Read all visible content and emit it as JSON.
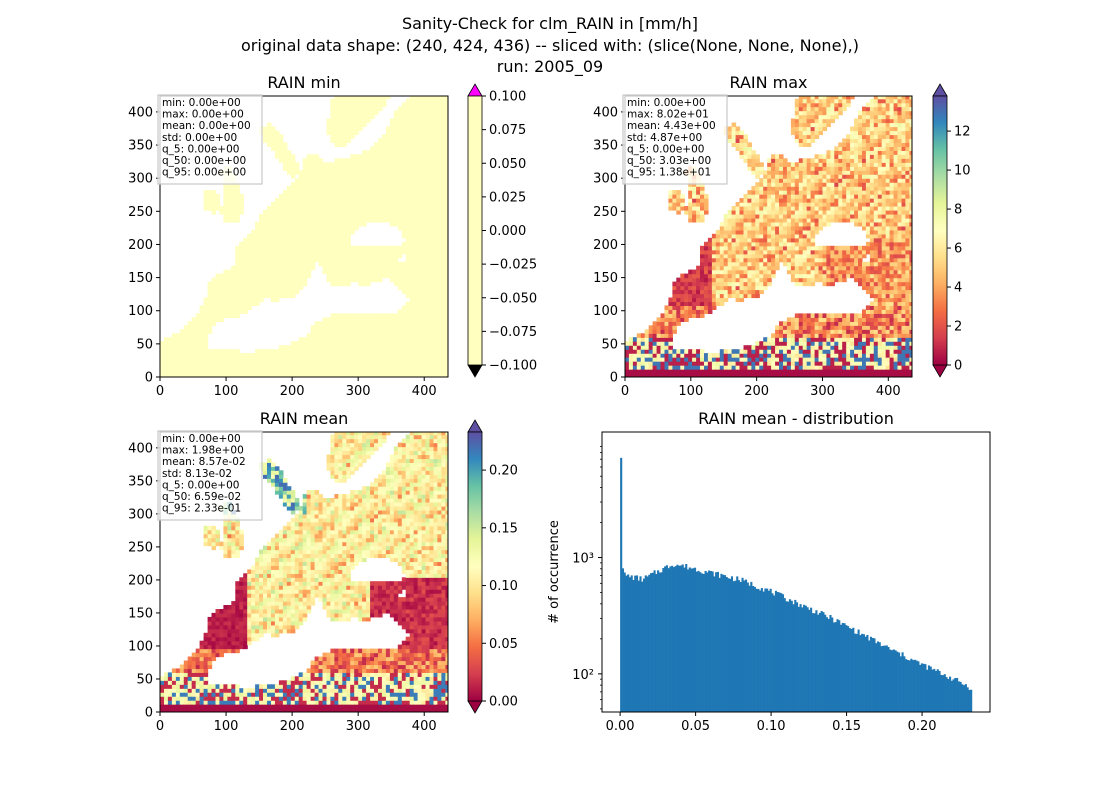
{
  "figure": {
    "title_lines": [
      "Sanity-Check for clm_RAIN in [mm/h]",
      "original data shape: (240, 424, 436) -- sliced with: (slice(None, None, None),)",
      "run: 2005_09"
    ]
  },
  "colormap": {
    "name": "Spectral",
    "stops": [
      "#9e0142",
      "#d53e4f",
      "#f46d43",
      "#fdae61",
      "#fee08b",
      "#ffffbf",
      "#e6f598",
      "#abdda4",
      "#66c2a5",
      "#3288bd",
      "#5e4fa2"
    ],
    "over_color_min_panel": "#ff00ff",
    "under_color": "#000000",
    "land_min_color": "#ffffbf",
    "sea_color": "#ffffff",
    "histogram_color": "#1f77b4"
  },
  "chart_data": [
    {
      "type": "heatmap",
      "title": "RAIN min",
      "xlim": [
        0,
        436
      ],
      "ylim": [
        0,
        424
      ],
      "xticks": [
        0,
        100,
        200,
        300,
        400
      ],
      "yticks": [
        0,
        50,
        100,
        150,
        200,
        250,
        300,
        350,
        400
      ],
      "colorbar": {
        "vmin": -0.1,
        "vmax": 0.1,
        "extend": "both",
        "ticks": [
          "0.100",
          "0.075",
          "0.050",
          "0.025",
          "0.000",
          "−0.025",
          "−0.050",
          "−0.075",
          "−0.100"
        ]
      },
      "stats": [
        "min: 0.00e+00",
        "max: 0.00e+00",
        "mean: 0.00e+00",
        "std: 0.00e+00",
        "q_5: 0.00e+00",
        "q_50: 0.00e+00",
        "q_95: 0.00e+00"
      ]
    },
    {
      "type": "heatmap",
      "title": "RAIN max",
      "xlim": [
        0,
        436
      ],
      "ylim": [
        0,
        424
      ],
      "xticks": [
        0,
        100,
        200,
        300,
        400
      ],
      "yticks": [
        0,
        50,
        100,
        150,
        200,
        250,
        300,
        350,
        400
      ],
      "colorbar": {
        "vmin": 0,
        "vmax": 13.8,
        "extend": "both",
        "ticks": [
          "12",
          "10",
          "8",
          "6",
          "4",
          "2",
          "0"
        ]
      },
      "stats": [
        "min: 0.00e+00",
        "max: 8.02e+01",
        "mean: 4.43e+00",
        "std: 4.87e+00",
        "q_5: 0.00e+00",
        "q_50: 3.03e+00",
        "q_95: 1.38e+01"
      ]
    },
    {
      "type": "heatmap",
      "title": "RAIN mean",
      "xlim": [
        0,
        436
      ],
      "ylim": [
        0,
        424
      ],
      "xticks": [
        0,
        100,
        200,
        300,
        400
      ],
      "yticks": [
        0,
        50,
        100,
        150,
        200,
        250,
        300,
        350,
        400
      ],
      "colorbar": {
        "vmin": 0,
        "vmax": 0.233,
        "extend": "both",
        "ticks": [
          "0.20",
          "0.15",
          "0.10",
          "0.05",
          "0.00"
        ]
      },
      "stats": [
        "min: 0.00e+00",
        "max: 1.98e+00",
        "mean: 8.57e-02",
        "std: 8.13e-02",
        "q_5: 0.00e+00",
        "q_50: 6.59e-02",
        "q_95: 2.33e-01"
      ]
    },
    {
      "type": "bar",
      "title": "RAIN mean - distribution",
      "xlabel": "",
      "ylabel": "# of occurrence",
      "yscale": "log",
      "xlim": [
        -0.012,
        0.245
      ],
      "ylim": [
        47,
        12000
      ],
      "xticks": [
        "0.00",
        "0.05",
        "0.10",
        "0.15",
        "0.20"
      ],
      "yticks": [
        "10²",
        "10³"
      ],
      "bin_range": [
        0,
        0.233
      ],
      "bins": 200,
      "first_bin_count": 7200,
      "profile": {
        "x": [
          0.0015,
          0.003,
          0.008,
          0.015,
          0.025,
          0.035,
          0.045,
          0.06,
          0.08,
          0.1,
          0.12,
          0.14,
          0.16,
          0.18,
          0.2,
          0.215,
          0.225,
          0.233
        ],
        "counts": [
          880,
          700,
          680,
          650,
          760,
          880,
          830,
          740,
          640,
          510,
          390,
          300,
          220,
          160,
          120,
          98,
          85,
          75
        ]
      }
    }
  ]
}
